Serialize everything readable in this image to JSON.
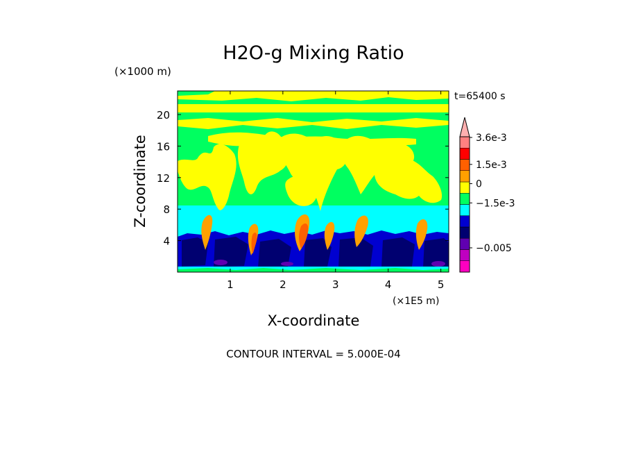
{
  "chart_data": {
    "type": "heatmap",
    "title": "H2O-g Mixing Ratio",
    "xlabel": "X-coordinate",
    "ylabel": "Z-coordinate",
    "x_unit_label": "(×1E5 m)",
    "y_unit_label": "(×1000 m)",
    "time_label": "t=65400 s",
    "contour_interval_label": "CONTOUR INTERVAL = 5.000E-04",
    "xlim": [
      0,
      5.15
    ],
    "ylim": [
      0,
      23
    ],
    "x_ticks": [
      {
        "value": 1,
        "label": "1"
      },
      {
        "value": 2,
        "label": "2"
      },
      {
        "value": 3,
        "label": "3"
      },
      {
        "value": 4,
        "label": "4"
      },
      {
        "value": 5,
        "label": "5"
      }
    ],
    "y_ticks": [
      {
        "value": 4,
        "label": "4"
      },
      {
        "value": 8,
        "label": "8"
      },
      {
        "value": 12,
        "label": "12"
      },
      {
        "value": 16,
        "label": "16"
      },
      {
        "value": 20,
        "label": "20"
      }
    ],
    "colorbar": {
      "levels": [
        {
          "color": "#ff00c0"
        },
        {
          "color": "#c000c0"
        },
        {
          "color": "#6000b0"
        },
        {
          "color": "#000070"
        },
        {
          "color": "#0000d0"
        },
        {
          "color": "#00ffff"
        },
        {
          "color": "#00ff60"
        },
        {
          "color": "#ffff00"
        },
        {
          "color": "#ffa000"
        },
        {
          "color": "#ff6000"
        },
        {
          "color": "#ff0000"
        },
        {
          "color": "#ff8080"
        },
        {
          "color": "#ffb0b0"
        }
      ],
      "labels": [
        {
          "text": "3.6e-3",
          "value": 0.0036
        },
        {
          "text": "1.5e-3",
          "value": 0.0015
        },
        {
          "text": "0",
          "value": 0
        },
        {
          "text": "−1.5e-3",
          "value": -0.0015
        },
        {
          "text": "−0.005",
          "value": -0.005
        }
      ]
    }
  }
}
